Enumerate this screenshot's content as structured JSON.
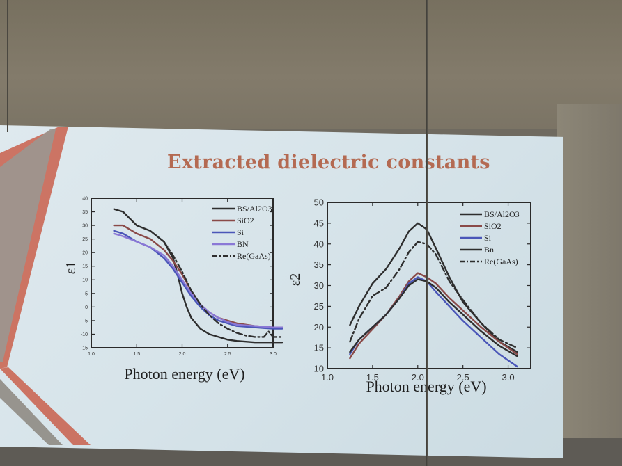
{
  "slide": {
    "title": "Extracted dielectric constants"
  },
  "colors": {
    "BS/Al2O3": "#2e2e2e",
    "SiO2": "#8a4a48",
    "Si": "#4a56b8",
    "BN": "#8a78d6",
    "Re(GaAs)": "#2e2e2e",
    "title": "#b46a52"
  },
  "chart_data": [
    {
      "type": "line",
      "ylabel": "ε1",
      "xlabel": "Photon energy (eV)",
      "xlim": [
        1.0,
        3.0
      ],
      "ylim": [
        -15,
        40
      ],
      "xticks": [
        "1.0",
        "1.5",
        "2.0",
        "2.5",
        "3.0"
      ],
      "yticks": [
        "-15",
        "-10",
        "-5",
        "0",
        "5",
        "10",
        "15",
        "20",
        "25",
        "30",
        "35",
        "40"
      ],
      "legend_position": "top-right",
      "series": [
        {
          "name": "BS/Al2O3",
          "style": "solid",
          "x": [
            1.25,
            1.35,
            1.5,
            1.65,
            1.8,
            1.9,
            1.95,
            2.0,
            2.05,
            2.1,
            2.2,
            2.3,
            2.4,
            2.5,
            2.6,
            2.8,
            3.0,
            3.1
          ],
          "y": [
            36,
            35,
            30,
            28,
            24,
            18,
            12,
            5,
            0,
            -4,
            -8,
            -10,
            -11,
            -12,
            -12.5,
            -13,
            -13,
            -13
          ]
        },
        {
          "name": "SiO2",
          "style": "solid",
          "x": [
            1.25,
            1.35,
            1.5,
            1.65,
            1.8,
            1.9,
            2.0,
            2.1,
            2.2,
            2.3,
            2.4,
            2.5,
            2.6,
            2.8,
            3.0,
            3.1
          ],
          "y": [
            30,
            30,
            27,
            25,
            21,
            17,
            12,
            6,
            1,
            -2,
            -4,
            -5,
            -6,
            -7,
            -7.5,
            -7.5
          ]
        },
        {
          "name": "Si",
          "style": "solid",
          "x": [
            1.25,
            1.35,
            1.5,
            1.65,
            1.8,
            1.9,
            2.0,
            2.1,
            2.2,
            2.3,
            2.4,
            2.5,
            2.6,
            2.8,
            3.0,
            3.1
          ],
          "y": [
            28,
            27,
            24,
            22,
            18,
            14,
            9,
            4,
            0,
            -3,
            -5,
            -6,
            -7,
            -7.5,
            -8,
            -8
          ]
        },
        {
          "name": "BN",
          "style": "solid",
          "x": [
            1.25,
            1.35,
            1.5,
            1.65,
            1.8,
            1.9,
            2.0,
            2.1,
            2.2,
            2.3,
            2.4,
            2.5,
            2.6,
            2.8,
            3.0,
            3.1
          ],
          "y": [
            27,
            26,
            24,
            22,
            19,
            15,
            10,
            5,
            1,
            -2,
            -4,
            -5.5,
            -6.5,
            -7,
            -7.5,
            -7.5
          ]
        },
        {
          "name": "Re(GaAs)",
          "style": "dashdot",
          "x": [
            1.8,
            1.9,
            2.0,
            2.1,
            2.2,
            2.3,
            2.4,
            2.5,
            2.6,
            2.7,
            2.8,
            2.9,
            2.95,
            3.0,
            3.1
          ],
          "y": [
            24,
            19,
            13,
            6,
            1,
            -3,
            -6,
            -8,
            -9.5,
            -10.5,
            -11,
            -11,
            -9,
            -11,
            -11
          ]
        }
      ]
    },
    {
      "type": "line",
      "ylabel": "ε2",
      "xlabel": "Photon energy (eV)",
      "xlim": [
        1.0,
        3.25
      ],
      "ylim": [
        10,
        50
      ],
      "xticks": [
        "1.0",
        "1.5",
        "2.0",
        "2.5",
        "3.0"
      ],
      "yticks": [
        "10",
        "15",
        "20",
        "25",
        "30",
        "35",
        "40",
        "45",
        "50"
      ],
      "legend_position": "top-right",
      "series": [
        {
          "name": "BS/Al2O3",
          "style": "solid",
          "x": [
            1.25,
            1.35,
            1.5,
            1.65,
            1.8,
            1.9,
            2.0,
            2.1,
            2.2,
            2.35,
            2.5,
            2.7,
            2.9,
            3.1
          ],
          "y": [
            20.5,
            25,
            30.5,
            34,
            39,
            43,
            45,
            43.5,
            39,
            32,
            26,
            21,
            16.5,
            14
          ]
        },
        {
          "name": "SiO2",
          "style": "solid",
          "x": [
            1.25,
            1.35,
            1.5,
            1.65,
            1.8,
            1.9,
            2.0,
            2.1,
            2.2,
            2.35,
            2.5,
            2.7,
            2.9,
            3.1
          ],
          "y": [
            12.5,
            16,
            19.5,
            23,
            27.5,
            31,
            33,
            32,
            30.5,
            27,
            24,
            20,
            16.5,
            13.5
          ]
        },
        {
          "name": "Si",
          "style": "solid",
          "x": [
            1.25,
            1.35,
            1.5,
            1.65,
            1.8,
            1.9,
            2.0,
            2.1,
            2.2,
            2.35,
            2.5,
            2.7,
            2.9,
            3.1
          ],
          "y": [
            13.5,
            17,
            20,
            23,
            27,
            30.5,
            32,
            31,
            28.5,
            25,
            21.5,
            17.5,
            13.5,
            10.5
          ]
        },
        {
          "name": "Bn",
          "style": "solid",
          "x": [
            1.25,
            1.35,
            1.5,
            1.65,
            1.8,
            1.9,
            2.0,
            2.1,
            2.2,
            2.35,
            2.5,
            2.7,
            2.9,
            3.1
          ],
          "y": [
            14,
            17,
            20,
            23,
            27,
            30,
            31.5,
            31,
            29.5,
            26,
            23,
            19,
            15.5,
            13
          ]
        },
        {
          "name": "Re(GaAs)",
          "style": "dashdot",
          "x": [
            1.25,
            1.35,
            1.5,
            1.65,
            1.8,
            1.9,
            2.0,
            2.1,
            2.2,
            2.35,
            2.5,
            2.7,
            2.9,
            3.1
          ],
          "y": [
            16.5,
            22,
            27.5,
            29.5,
            34,
            38,
            40.5,
            40,
            37.5,
            31,
            26.5,
            21,
            17,
            15
          ]
        }
      ]
    }
  ]
}
